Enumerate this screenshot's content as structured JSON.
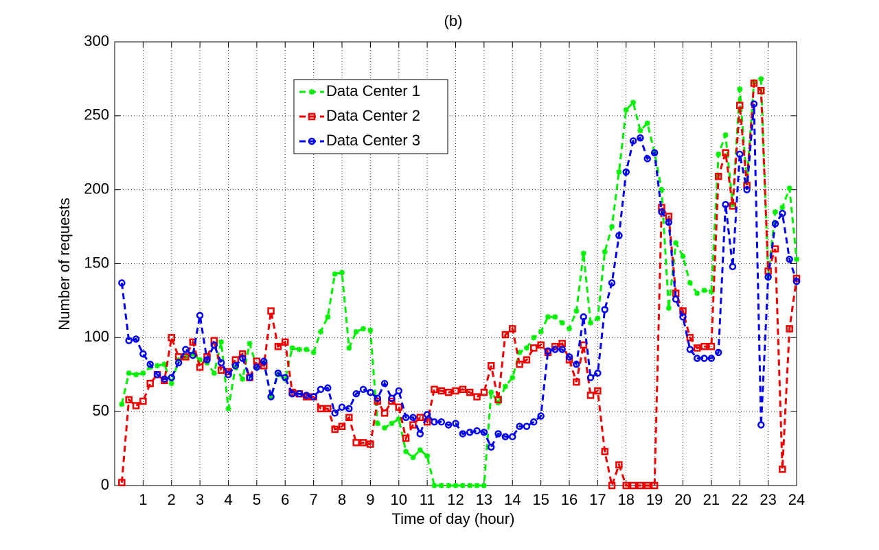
{
  "chart_data": {
    "type": "line",
    "title": "(b)",
    "x_label": "Time of day (hour)",
    "y_label": "Number of requests",
    "x": [
      0.25,
      0.5,
      0.75,
      1,
      1.25,
      1.5,
      1.75,
      2,
      2.25,
      2.5,
      2.75,
      3,
      3.25,
      3.5,
      3.75,
      4,
      4.25,
      4.5,
      4.75,
      5,
      5.25,
      5.5,
      5.75,
      6,
      6.25,
      6.5,
      6.75,
      7,
      7.25,
      7.5,
      7.75,
      8,
      8.25,
      8.5,
      8.75,
      9,
      9.25,
      9.5,
      9.75,
      10,
      10.25,
      10.5,
      10.75,
      11,
      11.25,
      11.5,
      11.75,
      12,
      12.25,
      12.5,
      12.75,
      13,
      13.25,
      13.5,
      13.75,
      14,
      14.25,
      14.5,
      14.75,
      15,
      15.25,
      15.5,
      15.75,
      16,
      16.25,
      16.5,
      16.75,
      17,
      17.25,
      17.5,
      17.75,
      18,
      18.25,
      18.5,
      18.75,
      19,
      19.25,
      19.5,
      19.75,
      20,
      20.25,
      20.5,
      20.75,
      21,
      21.25,
      21.5,
      21.75,
      22,
      22.25,
      22.5,
      22.75,
      23,
      23.25,
      23.5,
      23.75,
      24
    ],
    "series": [
      {
        "name": "Data Center 1",
        "color": "#00ee00",
        "marker": "star",
        "values": [
          55,
          76,
          75,
          76,
          80,
          81,
          82,
          69,
          85,
          87,
          89,
          85,
          83,
          76,
          97,
          52,
          80,
          72,
          96,
          80,
          83,
          60,
          75,
          72,
          93,
          92,
          92,
          90,
          104,
          114,
          143,
          144,
          93,
          104,
          106,
          105,
          42,
          39,
          42,
          45,
          23,
          19,
          24,
          20,
          0,
          0,
          0,
          0,
          0,
          0,
          0,
          0,
          63,
          56,
          67,
          73,
          90,
          93,
          100,
          104,
          114,
          114,
          110,
          106,
          118,
          157,
          110,
          113,
          158,
          175,
          212,
          254,
          259,
          240,
          245,
          225,
          200,
          120,
          164,
          155,
          137,
          130,
          132,
          131,
          224,
          237,
          190,
          268,
          205,
          273,
          275,
          142,
          185,
          188,
          201,
          153
        ]
      },
      {
        "name": "Data Center 2",
        "color": "#ee0000",
        "marker": "square",
        "values": [
          2,
          58,
          54,
          57,
          69,
          75,
          71,
          100,
          87,
          87,
          97,
          80,
          87,
          98,
          78,
          77,
          85,
          89,
          73,
          84,
          81,
          118,
          94,
          97,
          63,
          62,
          60,
          60,
          52,
          52,
          38,
          40,
          46,
          29,
          29,
          28,
          57,
          49,
          57,
          53,
          32,
          41,
          46,
          43,
          65,
          64,
          63,
          64,
          65,
          63,
          60,
          63,
          81,
          58,
          102,
          106,
          82,
          85,
          93,
          95,
          90,
          94,
          96,
          85,
          70,
          95,
          61,
          64,
          23,
          0,
          14,
          0,
          0,
          0,
          0,
          0,
          188,
          182,
          130,
          118,
          100,
          93,
          94,
          94,
          209,
          225,
          189,
          257,
          203,
          272,
          267,
          145,
          160,
          11,
          106,
          140
        ]
      },
      {
        "name": "Data Center 3",
        "color": "#0000ee",
        "marker": "circle",
        "values": [
          137,
          98,
          99,
          89,
          82,
          75,
          72,
          73,
          83,
          92,
          88,
          115,
          85,
          95,
          83,
          75,
          81,
          86,
          73,
          80,
          84,
          60,
          76,
          73,
          62,
          62,
          61,
          60,
          65,
          66,
          49,
          53,
          52,
          62,
          65,
          63,
          59,
          69,
          59,
          64,
          46,
          46,
          35,
          48,
          43,
          43,
          41,
          42,
          35,
          36,
          37,
          36,
          26,
          35,
          33,
          33,
          40,
          40,
          43,
          47,
          91,
          92,
          92,
          87,
          82,
          114,
          73,
          76,
          119,
          137,
          169,
          212,
          233,
          235,
          221,
          225,
          185,
          178,
          126,
          114,
          92,
          86,
          86,
          86,
          90,
          190,
          148,
          224,
          200,
          258,
          41,
          141,
          177,
          184,
          153,
          138
        ]
      }
    ],
    "xlim": [
      0,
      24
    ],
    "xticks": [
      1,
      2,
      3,
      4,
      5,
      6,
      7,
      8,
      9,
      10,
      11,
      12,
      13,
      14,
      15,
      16,
      17,
      18,
      19,
      20,
      21,
      22,
      23,
      24
    ],
    "ylim": [
      0,
      300
    ],
    "yticks": [
      0,
      50,
      100,
      150,
      200,
      250,
      300
    ],
    "grid": true
  }
}
